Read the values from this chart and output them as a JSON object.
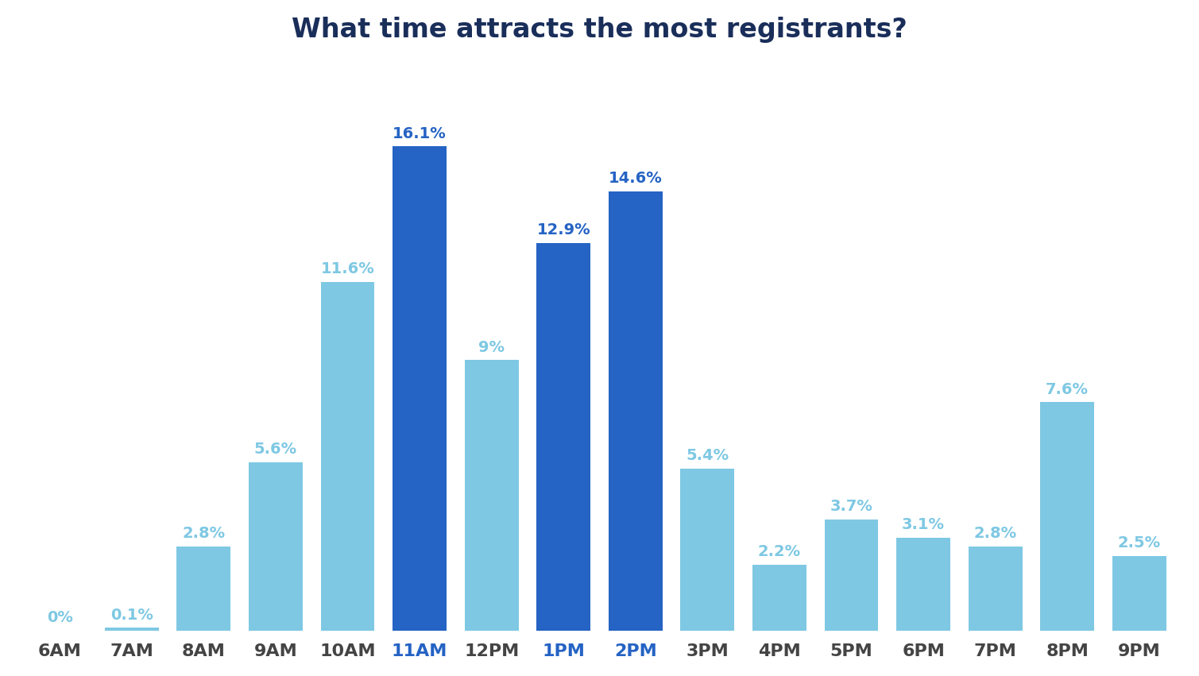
{
  "title": "What time attracts the most registrants?",
  "categories": [
    "6AM",
    "7AM",
    "8AM",
    "9AM",
    "10AM",
    "11AM",
    "12PM",
    "1PM",
    "2PM",
    "3PM",
    "4PM",
    "5PM",
    "6PM",
    "7PM",
    "8PM",
    "9PM"
  ],
  "values": [
    0.0,
    0.1,
    2.8,
    5.6,
    11.6,
    16.1,
    9.0,
    12.9,
    14.6,
    5.4,
    2.2,
    3.7,
    3.1,
    2.8,
    7.6,
    2.5
  ],
  "labels": [
    "0%",
    "0.1%",
    "2.8%",
    "5.6%",
    "11.6%",
    "16.1%",
    "9%",
    "12.9%",
    "14.6%",
    "5.4%",
    "2.2%",
    "3.7%",
    "3.1%",
    "2.8%",
    "7.6%",
    "2.5%"
  ],
  "bar_colors": [
    "#7ec8e3",
    "#7ec8e3",
    "#7ec8e3",
    "#7ec8e3",
    "#7ec8e3",
    "#2563c4",
    "#7ec8e3",
    "#2563c4",
    "#2563c4",
    "#7ec8e3",
    "#7ec8e3",
    "#7ec8e3",
    "#7ec8e3",
    "#7ec8e3",
    "#7ec8e3",
    "#7ec8e3"
  ],
  "label_colors": [
    "#7ec8e3",
    "#7ec8e3",
    "#7ec8e3",
    "#7ec8e3",
    "#7ec8e3",
    "#2563c4",
    "#7ec8e3",
    "#2563c4",
    "#2563c4",
    "#7ec8e3",
    "#7ec8e3",
    "#7ec8e3",
    "#7ec8e3",
    "#7ec8e3",
    "#7ec8e3",
    "#7ec8e3"
  ],
  "tick_colors": [
    "#444444",
    "#444444",
    "#444444",
    "#444444",
    "#444444",
    "#2563c4",
    "#444444",
    "#2563c4",
    "#2563c4",
    "#444444",
    "#444444",
    "#444444",
    "#444444",
    "#444444",
    "#444444",
    "#444444"
  ],
  "title_color": "#1a2e5a",
  "title_fontsize": 24,
  "label_fontsize": 14,
  "tick_fontsize": 16,
  "background_color": "#ffffff",
  "ylim": [
    0,
    19
  ],
  "bar_width": 0.75
}
